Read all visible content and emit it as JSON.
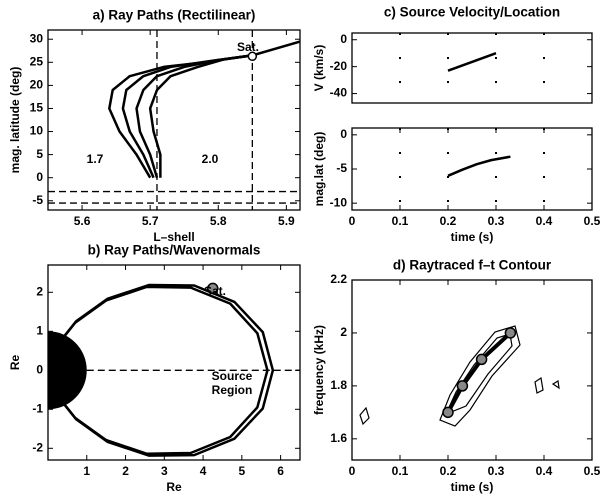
{
  "chart_data": [
    {
      "type": "line",
      "title": "a) Ray Paths (Rectilinear)",
      "xlabel": "L–shell",
      "ylabel": "mag. latitude (deg)",
      "xlim": [
        5.55,
        5.92
      ],
      "ylim": [
        -7,
        32
      ],
      "xticks": [
        5.6,
        5.7,
        5.8,
        5.9
      ],
      "yticks": [
        -5,
        0,
        5,
        10,
        15,
        20,
        25,
        30
      ],
      "vlines": [
        5.71,
        5.85
      ],
      "hlines": [
        -3,
        -5.5
      ],
      "annotations": [
        "Sat.",
        "1.7",
        "2.0"
      ],
      "series": [
        {
          "color": "#000000",
          "x": [
            5.7,
            5.68,
            5.655,
            5.64,
            5.645,
            5.67,
            5.72,
            5.78,
            5.85,
            5.92
          ],
          "values": [
            0,
            5,
            10,
            15,
            19,
            22,
            24,
            25,
            26.5,
            29.5
          ]
        },
        {
          "color": "#000000",
          "x": [
            5.705,
            5.69,
            5.67,
            5.66,
            5.665,
            5.69,
            5.73,
            5.79,
            5.85
          ],
          "values": [
            0,
            5,
            10,
            15,
            19,
            22,
            24,
            25.3,
            26.5
          ]
        },
        {
          "color": "#000000",
          "x": [
            5.71,
            5.7,
            5.685,
            5.68,
            5.69,
            5.71,
            5.75,
            5.8,
            5.85
          ],
          "values": [
            0,
            5,
            10,
            15,
            19,
            22,
            24,
            25.5,
            26.5
          ]
        },
        {
          "color": "#000000",
          "x": [
            5.715,
            5.715,
            5.705,
            5.7,
            5.71,
            5.73,
            5.77,
            5.81,
            5.85
          ],
          "values": [
            0,
            5,
            10,
            15,
            19,
            22,
            24,
            25.7,
            26.5
          ]
        },
        {
          "color": "#000000",
          "x": [
            5.85
          ],
          "values": [
            26.3
          ],
          "marker": "circle-open"
        }
      ]
    },
    {
      "type": "line",
      "title": "c) Source Velocity/Location",
      "ylabel": "V (km/s)",
      "xlim": [
        0,
        0.5
      ],
      "ylim": [
        -47,
        5
      ],
      "yticks": [
        -40,
        -20,
        0
      ],
      "vlines": [
        0.1,
        0.2,
        0.3,
        0.4
      ],
      "series": [
        {
          "color": "#000000",
          "x": [
            0.2,
            0.3
          ],
          "values": [
            -23,
            -10
          ]
        }
      ]
    },
    {
      "type": "line",
      "xlabel": "time (s)",
      "ylabel": "mag.lat (deg)",
      "xlim": [
        0,
        0.5
      ],
      "ylim": [
        -11,
        1
      ],
      "xticks": [
        0,
        0.1,
        0.2,
        0.3,
        0.4,
        0.5
      ],
      "yticks": [
        -10,
        -5,
        0
      ],
      "vlines": [
        0.1,
        0.2,
        0.3,
        0.4
      ],
      "series": [
        {
          "color": "#000000",
          "x": [
            0.2,
            0.23,
            0.26,
            0.29,
            0.33
          ],
          "values": [
            -6,
            -5.1,
            -4.3,
            -3.7,
            -3.2
          ]
        }
      ]
    },
    {
      "type": "line",
      "title": "b) Ray Paths/Wavenormals",
      "xlabel": "Re",
      "ylabel": "Re",
      "xlim": [
        0,
        6.5
      ],
      "ylim": [
        -2.3,
        2.7
      ],
      "xticks": [
        1,
        2,
        3,
        4,
        5,
        6
      ],
      "yticks": [
        -2,
        -1,
        0,
        1,
        2
      ],
      "hlines": [
        0
      ],
      "shapes": [
        {
          "type": "half-disk",
          "cx": 0,
          "cy": 0,
          "r": 1
        }
      ],
      "annotations": [
        "Sat.",
        "Source",
        "Region"
      ],
      "series": [
        {
          "color": "#000000",
          "x": [
            0.232,
            0.725,
            1.54,
            2.61,
            3.77,
            4.81,
            5.54,
            5.8,
            5.54,
            4.81,
            3.77,
            2.61,
            1.54,
            0.725,
            0.232
          ],
          "values": [
            0.638,
            1.256,
            1.837,
            2.188,
            2.175,
            1.753,
            0.979,
            0,
            -0.979,
            -1.753,
            -2.175,
            -2.188,
            -1.837,
            -1.256,
            -0.638
          ]
        },
        {
          "color": "#000000",
          "x": [
            0.22,
            0.7,
            1.5,
            2.55,
            3.68,
            4.7,
            5.4,
            5.66,
            5.4,
            4.7,
            3.68,
            2.55,
            1.5,
            0.7,
            0.22
          ],
          "values": [
            0.62,
            1.22,
            1.79,
            2.14,
            2.12,
            1.71,
            0.95,
            0,
            -0.95,
            -1.71,
            -2.12,
            -2.14,
            -1.79,
            -1.22,
            -0.62
          ]
        },
        {
          "color": "#000000",
          "x": [
            4.25
          ],
          "values": [
            2.1
          ],
          "marker": "circle"
        }
      ]
    },
    {
      "type": "line",
      "title": "d) Raytraced f–t Contour",
      "xlabel": "time (s)",
      "ylabel": "frequency (kHz)",
      "xlim": [
        0,
        0.5
      ],
      "ylim": [
        1.52,
        2.2
      ],
      "xticks": [
        0,
        0.1,
        0.2,
        0.3,
        0.4,
        0.5
      ],
      "yticks": [
        1.6,
        1.8,
        2,
        2.2
      ],
      "series": [
        {
          "color": "#000000",
          "x": [
            0.2,
            0.23,
            0.27,
            0.33
          ],
          "values": [
            1.7,
            1.8,
            1.9,
            2
          ],
          "marker": "circle"
        }
      ]
    }
  ]
}
